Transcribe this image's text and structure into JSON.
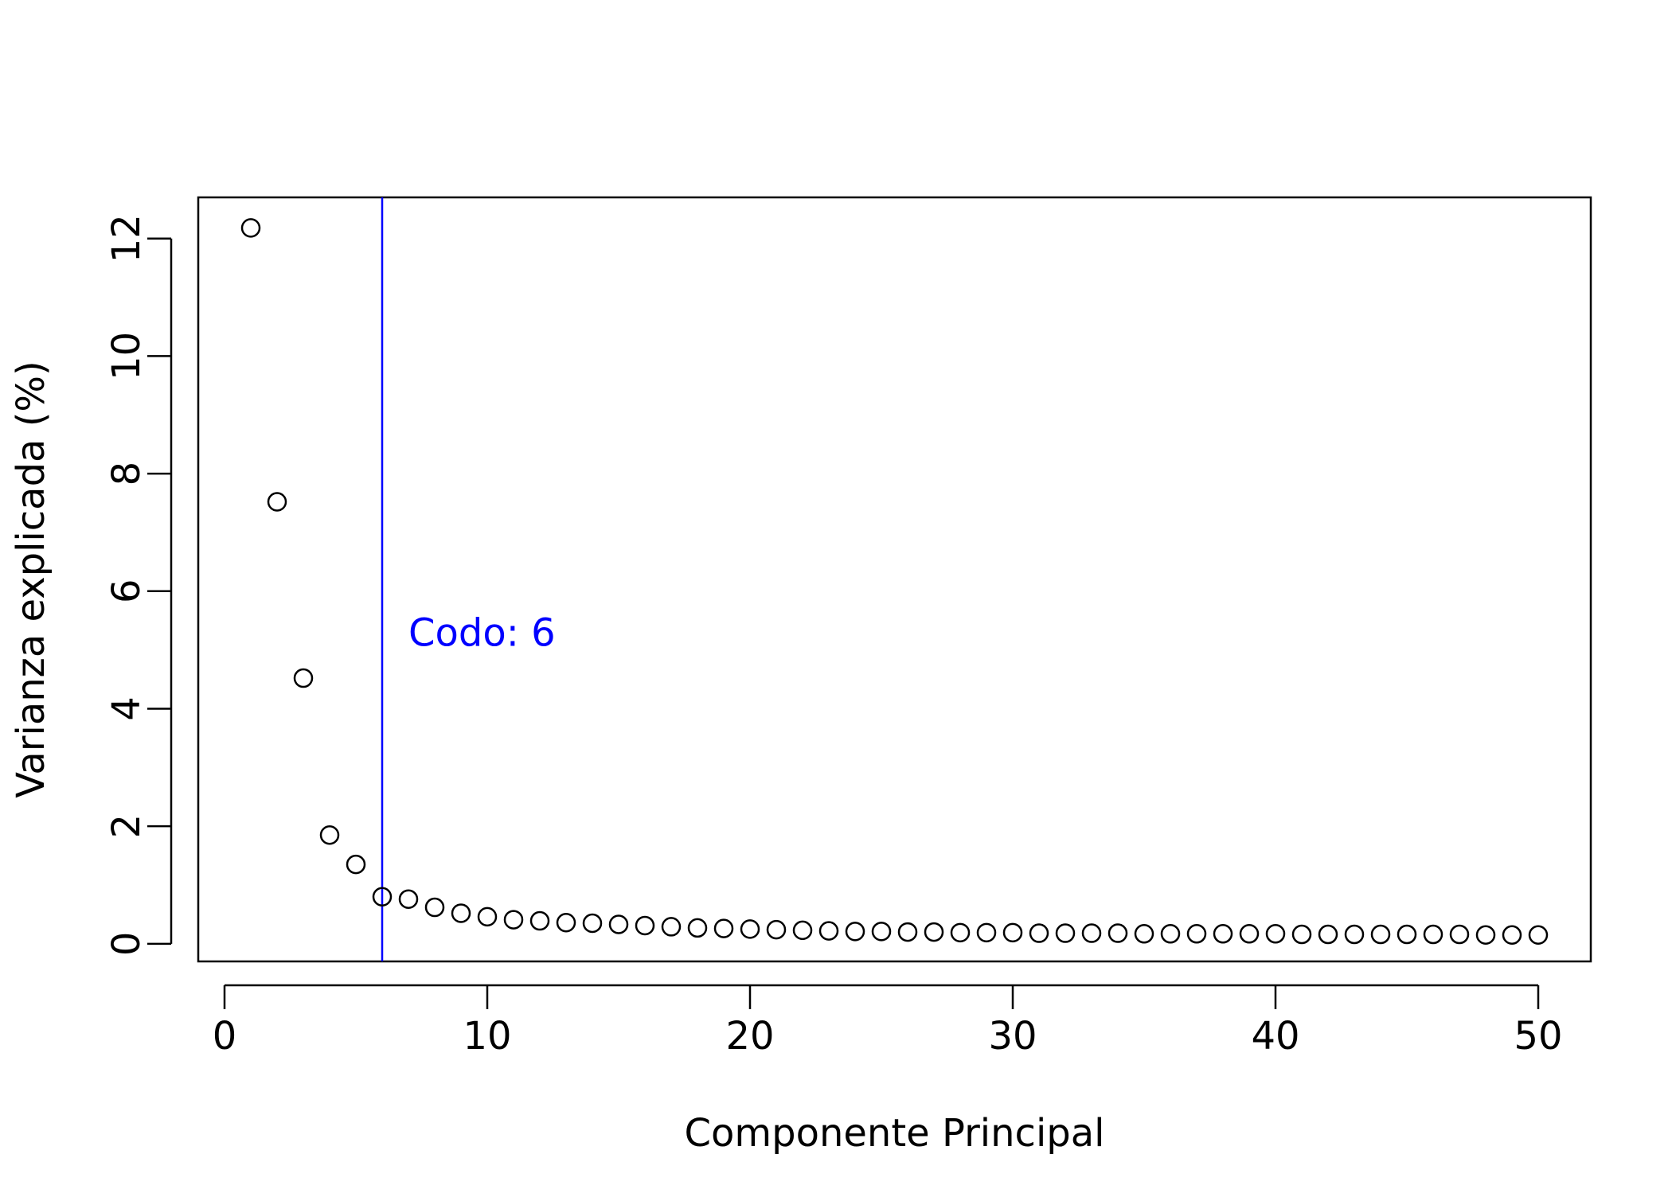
{
  "chart_data": {
    "type": "scatter",
    "title": "",
    "xlabel": "Componente Principal",
    "ylabel": "Varianza explicada (%)",
    "xlim": [
      -1,
      52
    ],
    "ylim": [
      -0.3,
      12.7
    ],
    "x_ticks": [
      0,
      10,
      20,
      30,
      40,
      50
    ],
    "y_ticks": [
      0,
      2,
      4,
      6,
      8,
      10,
      12
    ],
    "grid": false,
    "legend": "none",
    "marker": "open-circle",
    "marker_color": "#000000",
    "x": [
      1,
      2,
      3,
      4,
      5,
      6,
      7,
      8,
      9,
      10,
      11,
      12,
      13,
      14,
      15,
      16,
      17,
      18,
      19,
      20,
      21,
      22,
      23,
      24,
      25,
      26,
      27,
      28,
      29,
      30,
      31,
      32,
      33,
      34,
      35,
      36,
      37,
      38,
      39,
      40,
      41,
      42,
      43,
      44,
      45,
      46,
      47,
      48,
      49,
      50
    ],
    "y": [
      12.18,
      7.52,
      4.52,
      1.85,
      1.35,
      0.8,
      0.76,
      0.62,
      0.52,
      0.46,
      0.41,
      0.39,
      0.36,
      0.35,
      0.33,
      0.31,
      0.29,
      0.27,
      0.26,
      0.25,
      0.24,
      0.23,
      0.22,
      0.21,
      0.21,
      0.2,
      0.2,
      0.19,
      0.19,
      0.19,
      0.18,
      0.18,
      0.18,
      0.18,
      0.17,
      0.17,
      0.17,
      0.17,
      0.17,
      0.17,
      0.16,
      0.16,
      0.16,
      0.16,
      0.16,
      0.16,
      0.16,
      0.15,
      0.15,
      0.15
    ],
    "vline": {
      "x": 6,
      "color": "#0000ff",
      "label": "Codo: 6",
      "label_x": 7,
      "label_y": 5.3
    }
  }
}
